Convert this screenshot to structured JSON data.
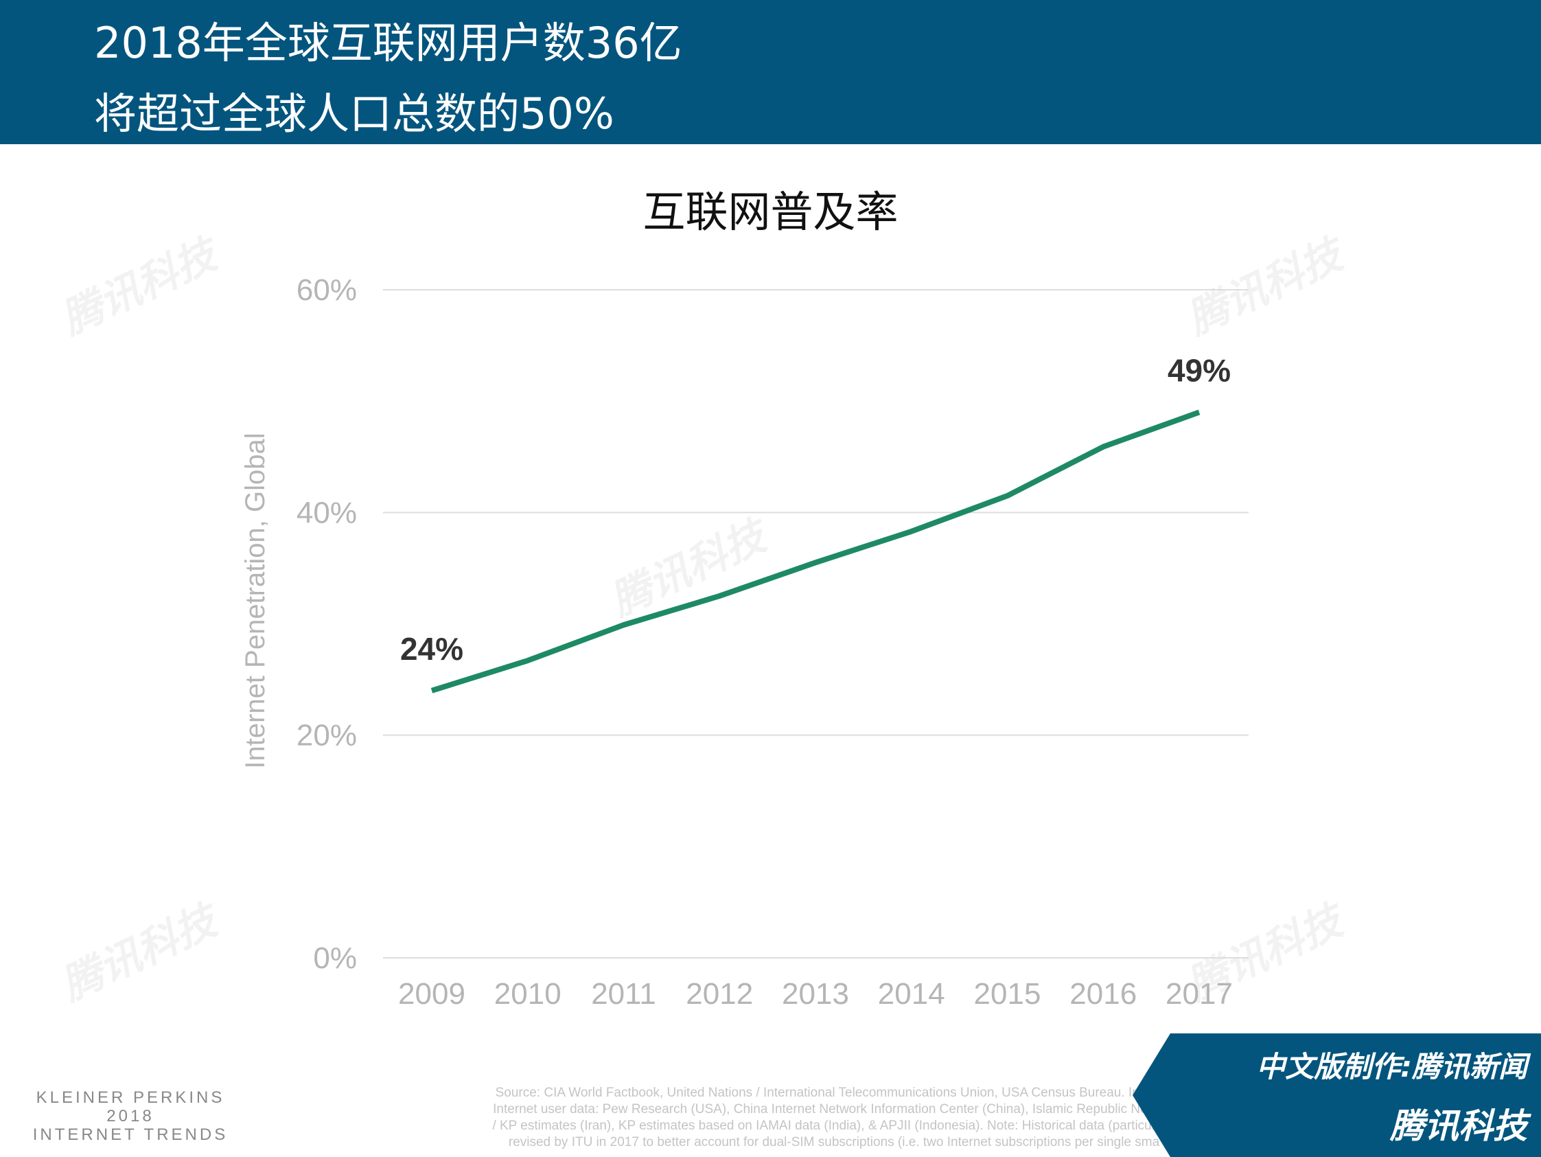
{
  "header": {
    "line1": "2018年全球互联网用户数36亿",
    "line2": "将超过全球人口总数的50%"
  },
  "colors": {
    "header_bg": "#03557e",
    "line": "#1e8a64",
    "grid": "#dddddd"
  },
  "chart_data": {
    "type": "line",
    "title": "互联网普及率",
    "ylabel": "Internet Penetration, Global",
    "xlabel": "",
    "categories": [
      "2009",
      "2010",
      "2011",
      "2012",
      "2013",
      "2014",
      "2015",
      "2016",
      "2017"
    ],
    "series": [
      {
        "values": [
          24,
          26.7,
          29.9,
          32.5,
          35.5,
          38.3,
          41.5,
          45.9,
          49
        ]
      }
    ],
    "ylim": [
      0,
      60
    ],
    "yticks": [
      "0%",
      "20%",
      "40%",
      "60%"
    ],
    "grid": true,
    "data_labels": [
      {
        "category": "2009",
        "text": "24%"
      },
      {
        "category": "2017",
        "text": "49%"
      }
    ]
  },
  "footer": {
    "logo": [
      "KLEINER PERKINS",
      "2018",
      "INTERNET TRENDS"
    ],
    "source": [
      "Source: CIA World Factbook, United Nations / International Telecommunications Union, USA Census Bureau. Internet",
      "Internet user data: Pew Research (USA), China Internet Network Information Center (China), Islamic Republic News A",
      "/ KP estimates (Iran), KP estimates based on IAMAI data (India), & APJII (Indonesia).  Note: Historical data (particularly",
      "revised by ITU in 2017 to better account for dual-SIM subscriptions (i.e. two Internet subscriptions per single sma"
    ],
    "badge_line1": "中文版制作:腾讯新闻",
    "badge_line2": "腾讯科技"
  },
  "watermark": "腾讯科技"
}
